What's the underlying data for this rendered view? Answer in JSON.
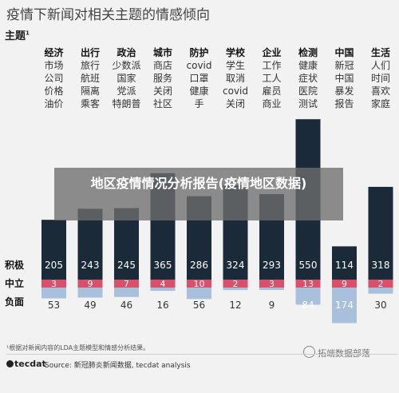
{
  "title": "疫情下新闻对相关主题的情感倾向",
  "topic_heading": "主题",
  "topic_heading_sup": "1",
  "row_labels": [
    "积极",
    "中立",
    "负面"
  ],
  "overlay_text": "地区疫情情况分析报告(疫情地区数据)",
  "footnote": "¹根据对新闻内容的LDA主题模型和情感分析结果。",
  "source": "Source: 新冠肺炎新闻数据, tecdat analysis",
  "logo_text": "tecdat",
  "watermark": "拓端数据部落",
  "colors": {
    "positive": "#1b2a38",
    "neutral": "#d9506a",
    "negative": "#a9c0dc"
  },
  "chart_data": {
    "type": "bar",
    "categories": [
      "经济",
      "出行",
      "政治",
      "城市",
      "防护",
      "学校",
      "企业",
      "检测",
      "中国",
      "生活"
    ],
    "keywords": [
      [
        "市场",
        "公司",
        "价格",
        "油价"
      ],
      [
        "旅行",
        "航班",
        "隔离",
        "乘客"
      ],
      [
        "少数派",
        "国家",
        "党派",
        "特朗普"
      ],
      [
        "商店",
        "服务",
        "关闭",
        "社区"
      ],
      [
        "covid",
        "口罩",
        "健康",
        "手"
      ],
      [
        "学生",
        "取消",
        "covid",
        "关闭"
      ],
      [
        "工作",
        "工人",
        "雇员",
        "商业"
      ],
      [
        "健康",
        "症状",
        "医院",
        "测试"
      ],
      [
        "新冠",
        "中国",
        "暴发",
        "报告"
      ],
      [
        "人们",
        "时间",
        "喜欢",
        "家庭"
      ]
    ],
    "series": [
      {
        "name": "积极",
        "values": [
          205,
          243,
          245,
          365,
          286,
          324,
          293,
          550,
          114,
          318
        ]
      },
      {
        "name": "中立",
        "values": [
          3,
          9,
          7,
          4,
          10,
          2,
          3,
          13,
          9,
          2
        ]
      },
      {
        "name": "负面",
        "values": [
          53,
          49,
          46,
          16,
          56,
          12,
          9,
          84,
          174,
          30
        ]
      }
    ]
  }
}
